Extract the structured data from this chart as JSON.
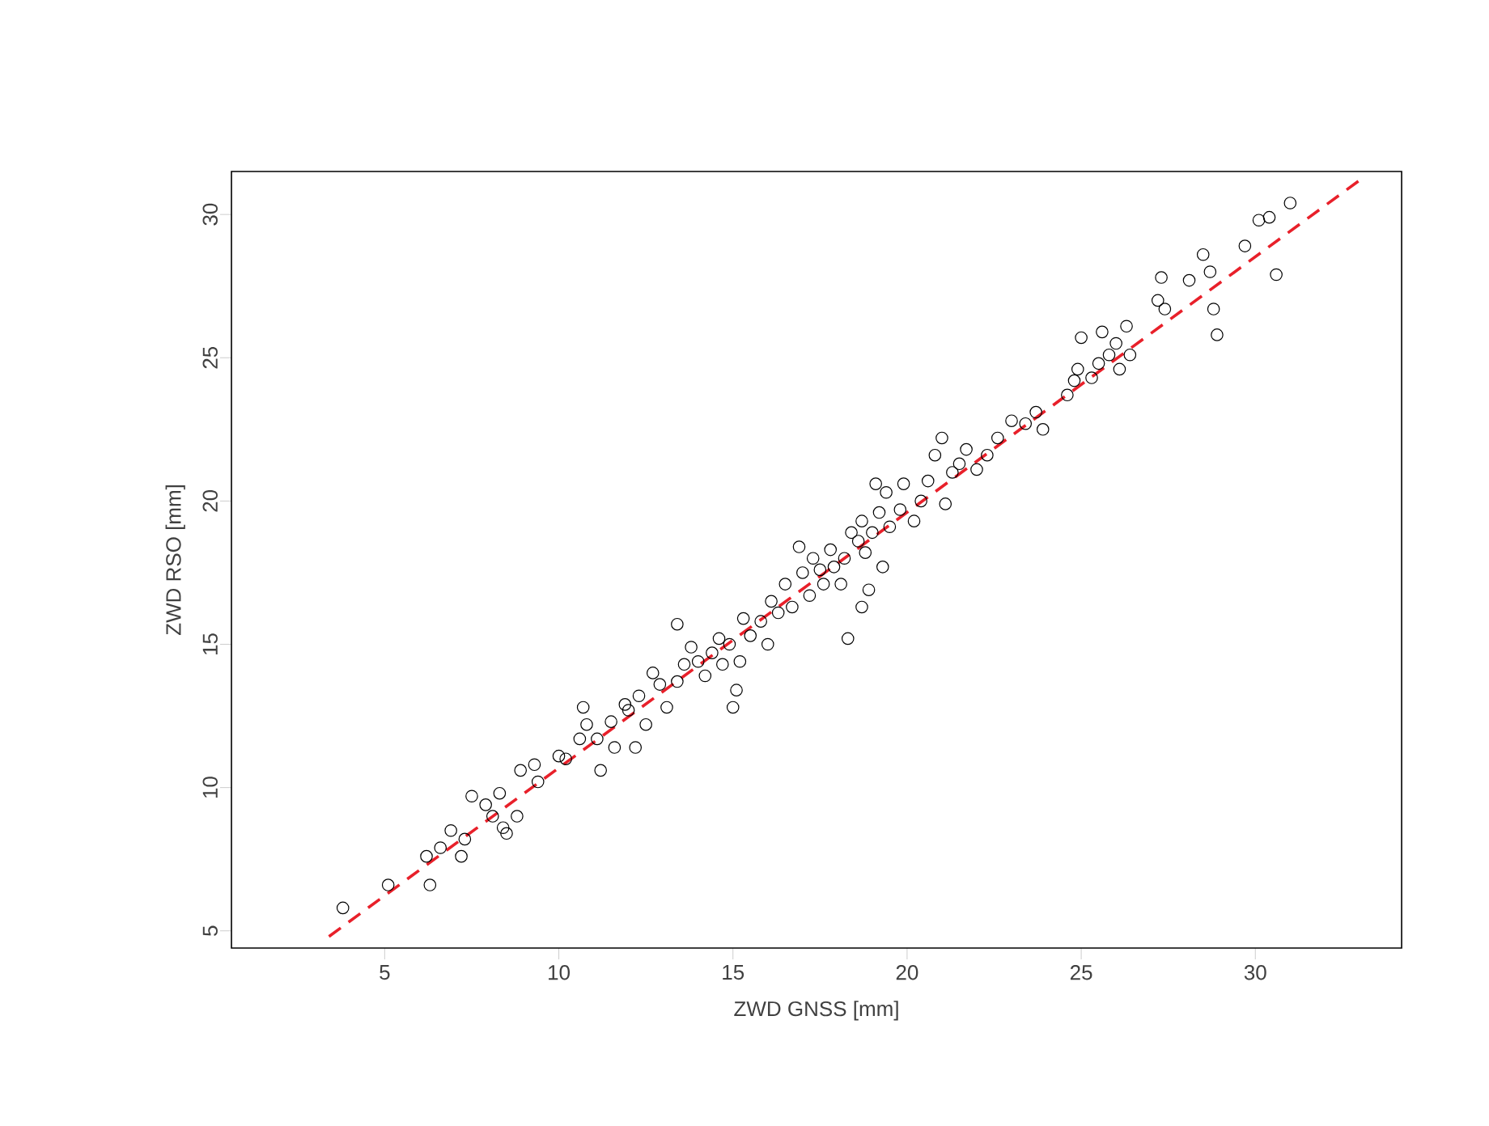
{
  "chart_data": {
    "type": "scatter",
    "xlabel": "ZWD GNSS [mm]",
    "ylabel": "ZWD RSO [mm]",
    "xlim": [
      0.6,
      34.2
    ],
    "ylim": [
      4.4,
      31.5
    ],
    "xticks": [
      5,
      10,
      15,
      20,
      25,
      30
    ],
    "yticks": [
      5,
      10,
      15,
      20,
      25,
      30
    ],
    "series": [
      {
        "color": "#000000",
        "marker": "circle",
        "x": [
          3.8,
          5.1,
          6.3,
          6.2,
          6.6,
          6.9,
          7.2,
          7.3,
          7.5,
          7.9,
          8.1,
          8.3,
          8.4,
          8.5,
          8.8,
          8.9,
          9.4,
          9.3,
          10.2,
          10.0,
          10.6,
          10.7,
          10.8,
          11.1,
          11.2,
          11.5,
          11.6,
          11.9,
          12.0,
          12.2,
          12.3,
          12.5,
          12.7,
          12.9,
          13.1,
          13.4,
          13.4,
          13.6,
          13.8,
          14.0,
          14.2,
          14.4,
          14.6,
          14.7,
          14.9,
          15.0,
          15.1,
          15.2,
          15.3,
          15.5,
          15.8,
          16.0,
          16.1,
          16.3,
          16.5,
          16.7,
          16.9,
          17.0,
          17.2,
          17.3,
          17.5,
          17.6,
          17.8,
          17.9,
          18.1,
          18.2,
          18.3,
          18.4,
          18.6,
          18.7,
          18.7,
          18.8,
          18.9,
          19.0,
          19.1,
          19.2,
          19.3,
          19.4,
          19.5,
          19.8,
          19.9,
          20.2,
          20.4,
          20.6,
          20.8,
          21.0,
          21.1,
          21.3,
          21.5,
          21.7,
          22.0,
          22.3,
          22.6,
          23.0,
          23.4,
          23.7,
          23.9,
          24.6,
          24.8,
          24.9,
          25.0,
          25.3,
          25.5,
          25.6,
          25.8,
          26.0,
          26.1,
          26.3,
          26.4,
          27.2,
          27.3,
          27.4,
          28.1,
          28.5,
          28.7,
          28.8,
          28.9,
          29.7,
          30.1,
          30.4,
          30.6,
          31.0
        ],
        "values": [
          5.8,
          6.6,
          6.6,
          7.6,
          7.9,
          8.5,
          7.6,
          8.2,
          9.7,
          9.4,
          9.0,
          9.8,
          8.6,
          8.4,
          9.0,
          10.6,
          10.2,
          10.8,
          11.0,
          11.1,
          11.7,
          12.8,
          12.2,
          11.7,
          10.6,
          12.3,
          11.4,
          12.9,
          12.7,
          11.4,
          13.2,
          12.2,
          14.0,
          13.6,
          12.8,
          13.7,
          15.7,
          14.3,
          14.9,
          14.4,
          13.9,
          14.7,
          15.2,
          14.3,
          15.0,
          12.8,
          13.4,
          14.4,
          15.9,
          15.3,
          15.8,
          15.0,
          16.5,
          16.1,
          17.1,
          16.3,
          18.4,
          17.5,
          16.7,
          18.0,
          17.6,
          17.1,
          18.3,
          17.7,
          17.1,
          18.0,
          15.2,
          18.9,
          18.6,
          19.3,
          16.3,
          18.2,
          16.9,
          18.9,
          20.6,
          19.6,
          17.7,
          20.3,
          19.1,
          19.7,
          20.6,
          19.3,
          20.0,
          20.7,
          21.6,
          22.2,
          19.9,
          21.0,
          21.3,
          21.8,
          21.1,
          21.6,
          22.2,
          22.8,
          22.7,
          23.1,
          22.5,
          23.7,
          24.2,
          24.6,
          25.7,
          24.3,
          24.8,
          25.9,
          25.1,
          25.5,
          24.6,
          26.1,
          25.1,
          27.0,
          27.8,
          26.7,
          27.7,
          28.6,
          28.0,
          26.7,
          25.8,
          28.9,
          29.8,
          29.9,
          27.9,
          30.4
        ]
      },
      {
        "type": "line",
        "color": "#e8202a",
        "line_style": "dashed",
        "marker": "none",
        "x": [
          3.4,
          33.0
        ],
        "values": [
          4.8,
          31.2
        ]
      }
    ]
  }
}
